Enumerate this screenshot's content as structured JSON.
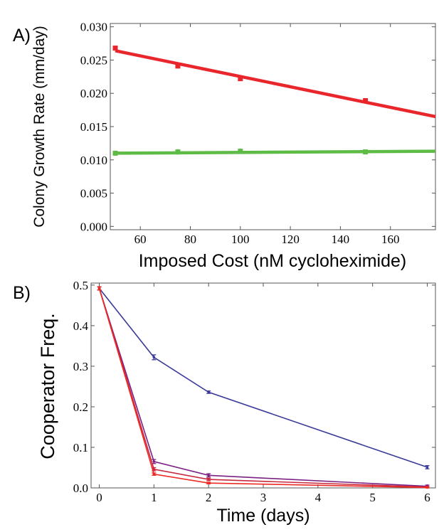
{
  "panels": [
    {
      "label": "A)",
      "chart_data": {
        "type": "scatter",
        "xlabel": "Imposed Cost (nM cycloheximide)",
        "ylabel": "Colony Growth Rate (mm/day)",
        "xlim": [
          48,
          178
        ],
        "ylim": [
          -0.0005,
          0.0305
        ],
        "xticks": [
          60,
          80,
          100,
          120,
          140,
          160
        ],
        "yticks": [
          0.0,
          0.005,
          0.01,
          0.015,
          0.02,
          0.025,
          0.03
        ],
        "ytick_labels": [
          "0.000",
          "0.005",
          "0.010",
          "0.015",
          "0.020",
          "0.025",
          "0.030"
        ],
        "grid": false,
        "series": [
          {
            "color": "#e8262b",
            "x": [
              50,
              75,
              100,
              150
            ],
            "y": [
              0.0268,
              0.0241,
              0.0222,
              0.0189
            ],
            "err": [
              0.0003,
              0.0003,
              0.0003,
              0.0003
            ],
            "fit": {
              "x": [
                50,
                178
              ],
              "y": [
                0.0264,
                0.0165
              ]
            }
          },
          {
            "color": "#5dbb46",
            "x": [
              50,
              75,
              100,
              150
            ],
            "y": [
              0.011,
              0.0112,
              0.0113,
              0.0112
            ],
            "err": [
              0.0003,
              0.0004,
              0.0004,
              0.0003
            ],
            "fit": {
              "x": [
                50,
                178
              ],
              "y": [
                0.011,
                0.0113
              ]
            }
          }
        ]
      }
    },
    {
      "label": "B)",
      "chart_data": {
        "type": "line",
        "xlabel": "Time (days)",
        "ylabel": "Cooperator Freq.",
        "xlim": [
          -0.15,
          6.15
        ],
        "ylim": [
          0,
          0.505
        ],
        "xticks": [
          0,
          1,
          2,
          3,
          4,
          5,
          6
        ],
        "yticks": [
          0.0,
          0.1,
          0.2,
          0.3,
          0.4,
          0.5
        ],
        "ytick_labels": [
          "0.0",
          "0.1",
          "0.2",
          "0.3",
          "0.4",
          "0.5"
        ],
        "grid": false,
        "series": [
          {
            "color": "#3a3a99",
            "x": [
              0,
              1,
              2,
              6
            ],
            "y": [
              0.492,
              0.322,
              0.236,
              0.051
            ],
            "err": [
              0.004,
              0.006,
              0.003,
              0.004
            ]
          },
          {
            "color": "#7a2182",
            "x": [
              0,
              1,
              2,
              6
            ],
            "y": [
              0.492,
              0.065,
              0.031,
              0.004
            ],
            "err": [
              0.004,
              0.005,
              0.004,
              0.003
            ]
          },
          {
            "color": "#c8283e",
            "x": [
              0,
              1,
              2,
              6
            ],
            "y": [
              0.492,
              0.046,
              0.021,
              0.002
            ],
            "err": [
              0.004,
              0.004,
              0.003,
              0.002
            ]
          },
          {
            "color": "#ee2a24",
            "x": [
              0,
              1,
              2,
              6
            ],
            "y": [
              0.492,
              0.034,
              0.012,
              0.001
            ],
            "err": [
              0.004,
              0.003,
              0.002,
              0.001
            ]
          }
        ]
      }
    }
  ]
}
